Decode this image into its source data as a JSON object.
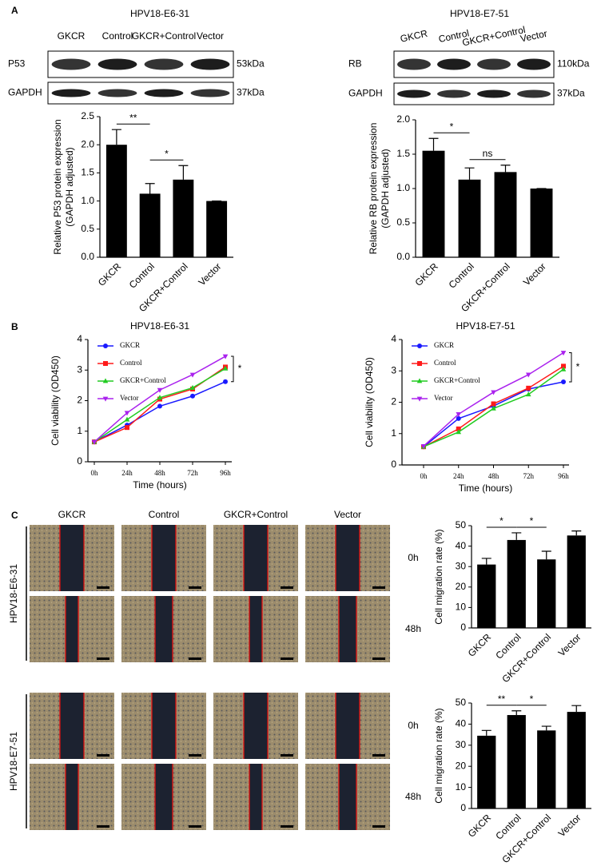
{
  "panel_labels": [
    "A",
    "B",
    "C"
  ],
  "blots": [
    {
      "title": "HPV18-E6-31",
      "lanes": [
        "GKCR",
        "Control",
        "GKCR+Control",
        "Vector"
      ],
      "rows": [
        {
          "protein": "P53",
          "size": "53kDa"
        },
        {
          "protein": "GAPDH",
          "size": "37kDa"
        }
      ]
    },
    {
      "title": "HPV18-E7-51",
      "lanes": [
        "GKCR",
        "Control",
        "GKCR+Control",
        "Vector"
      ],
      "rows": [
        {
          "protein": "RB",
          "size": "110kDa"
        },
        {
          "protein": "GAPDH",
          "size": "37kDa"
        }
      ]
    }
  ],
  "wound_healing": {
    "columns": [
      "GKCR",
      "Control",
      "GKCR+Control",
      "Vector"
    ],
    "rows": [
      {
        "cell_line": "HPV18-E6-31",
        "times": [
          "0h",
          "48h"
        ]
      },
      {
        "cell_line": "HPV18-E7-51",
        "times": [
          "0h",
          "48h"
        ]
      }
    ]
  },
  "chart_data": [
    {
      "type": "bar",
      "ylabel": [
        "Relative P53 protein expression",
        "(GAPDH adjusted)"
      ],
      "categories": [
        "GKCR",
        "Control",
        "GKCR+Control",
        "Vector"
      ],
      "values": [
        2.0,
        1.13,
        1.38,
        1.0
      ],
      "errors": [
        0.27,
        0.18,
        0.25,
        0
      ],
      "color": "#000000",
      "ylim": [
        0,
        2.5
      ],
      "yticks": [
        {
          "value": 0,
          "label": "0.0"
        },
        {
          "value": 0.5,
          "label": "0.5"
        },
        {
          "value": 1,
          "label": "1.0"
        },
        {
          "value": 1.5,
          "label": "1.5"
        },
        {
          "value": 2,
          "label": "2.0"
        },
        {
          "value": 2.5,
          "label": "2.5"
        }
      ],
      "annotations": [
        {
          "text": "**",
          "between": [
            "GKCR",
            "Control"
          ]
        },
        {
          "text": "*",
          "between": [
            "Control",
            "GKCR+Control"
          ]
        }
      ]
    },
    {
      "type": "bar",
      "ylabel": [
        "Relative RB protein expression",
        "(GAPDH adjusted)"
      ],
      "categories": [
        "GKCR",
        "Control",
        "GKCR+Control",
        "Vector"
      ],
      "values": [
        1.55,
        1.13,
        1.24,
        1.0
      ],
      "errors": [
        0.18,
        0.17,
        0.1,
        0
      ],
      "color": "#000000",
      "ylim": [
        0,
        2.0
      ],
      "yticks": [
        {
          "value": 0,
          "label": "0.0"
        },
        {
          "value": 0.5,
          "label": "0.5"
        },
        {
          "value": 1,
          "label": "1.0"
        },
        {
          "value": 1.5,
          "label": "1.5"
        },
        {
          "value": 2,
          "label": "2.0"
        }
      ],
      "annotations": [
        {
          "text": "*",
          "between": [
            "GKCR",
            "Control"
          ]
        },
        {
          "text": "ns",
          "between": [
            "Control",
            "GKCR+Control"
          ]
        }
      ]
    },
    {
      "type": "line",
      "title": "HPV18-E6-31",
      "xlabel": "Time (hours)",
      "ylabel": "Cell viability (OD450)",
      "categories": [
        "0h",
        "24h",
        "48h",
        "72h",
        "96h"
      ],
      "ylim": [
        0,
        4
      ],
      "yticks": [
        0,
        1,
        2,
        3,
        4
      ],
      "series": [
        {
          "name": "GKCR",
          "color": "#1a1aff",
          "marker": "circle",
          "values": [
            0.65,
            1.2,
            1.82,
            2.15,
            2.62
          ]
        },
        {
          "name": "Control",
          "color": "#ff1a1a",
          "marker": "square",
          "values": [
            0.65,
            1.12,
            2.05,
            2.38,
            3.1
          ]
        },
        {
          "name": "GKCR+Control",
          "color": "#22cc22",
          "marker": "triangle-up",
          "values": [
            0.65,
            1.38,
            2.1,
            2.42,
            3.05
          ]
        },
        {
          "name": "Vector",
          "color": "#aa22ee",
          "marker": "triangle-down",
          "values": [
            0.65,
            1.6,
            2.35,
            2.85,
            3.45
          ]
        }
      ],
      "annotations": [
        {
          "text": "*"
        }
      ]
    },
    {
      "type": "line",
      "title": "HPV18-E7-51",
      "xlabel": "Time (hours)",
      "ylabel": "Cell viability (OD450)",
      "categories": [
        "0h",
        "24h",
        "48h",
        "72h",
        "96h"
      ],
      "ylim": [
        0,
        4
      ],
      "yticks": [
        0,
        1,
        2,
        3,
        4
      ],
      "series": [
        {
          "name": "GKCR",
          "color": "#1a1aff",
          "marker": "circle",
          "values": [
            0.58,
            1.48,
            1.88,
            2.42,
            2.65
          ]
        },
        {
          "name": "Control",
          "color": "#ff1a1a",
          "marker": "square",
          "values": [
            0.58,
            1.15,
            1.95,
            2.45,
            3.15
          ]
        },
        {
          "name": "GKCR+Control",
          "color": "#22cc22",
          "marker": "triangle-up",
          "values": [
            0.58,
            1.05,
            1.8,
            2.25,
            3.05
          ]
        },
        {
          "name": "Vector",
          "color": "#aa22ee",
          "marker": "triangle-down",
          "values": [
            0.6,
            1.62,
            2.32,
            2.88,
            3.58
          ]
        }
      ],
      "annotations": [
        {
          "text": "*"
        }
      ]
    },
    {
      "type": "bar",
      "ylabel": "Cell migration rate (%)",
      "categories": [
        "GKCR",
        "Control",
        "GKCR+Control",
        "Vector"
      ],
      "values": [
        31,
        43,
        33.5,
        45.2
      ],
      "errors": [
        3,
        3.5,
        4,
        2.2
      ],
      "color": "#000000",
      "ylim": [
        0,
        50
      ],
      "yticks": [
        0,
        10,
        20,
        30,
        40,
        50
      ],
      "annotations": [
        {
          "text": "*",
          "between": [
            "GKCR",
            "Control"
          ]
        },
        {
          "text": "*",
          "between": [
            "Control",
            "GKCR+Control"
          ]
        }
      ]
    },
    {
      "type": "bar",
      "ylabel": "Cell migration rate (%)",
      "categories": [
        "GKCR",
        "Control",
        "GKCR+Control",
        "Vector"
      ],
      "values": [
        34.5,
        44.3,
        37,
        45.8
      ],
      "errors": [
        2.5,
        2,
        2,
        3
      ],
      "color": "#000000",
      "ylim": [
        0,
        50
      ],
      "yticks": [
        0,
        10,
        20,
        30,
        40,
        50
      ],
      "annotations": [
        {
          "text": "**",
          "between": [
            "GKCR",
            "Control"
          ]
        },
        {
          "text": "*",
          "between": [
            "Control",
            "GKCR+Control"
          ]
        }
      ]
    }
  ]
}
